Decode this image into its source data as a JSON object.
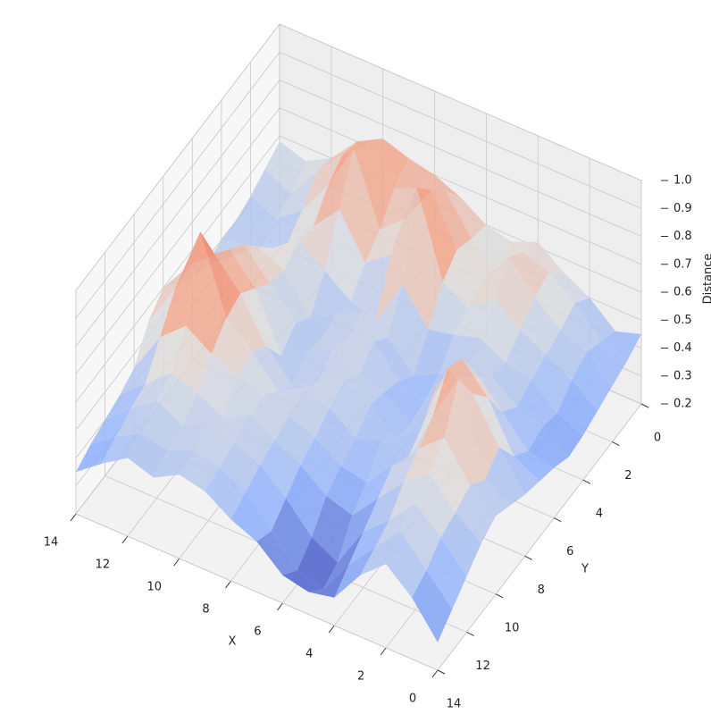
{
  "chart_data": {
    "type": "surface3d",
    "x": [
      0,
      1,
      2,
      3,
      4,
      5,
      6,
      7,
      8,
      9,
      10,
      11,
      12,
      13,
      14
    ],
    "y": [
      0,
      1,
      2,
      3,
      4,
      5,
      6,
      7,
      8,
      9,
      10,
      11,
      12,
      13,
      14
    ],
    "z": [
      [
        0.45,
        0.42,
        0.5,
        0.55,
        0.62,
        0.58,
        0.6,
        0.66,
        0.7,
        0.72,
        0.75,
        0.7,
        0.6,
        0.55,
        0.58
      ],
      [
        0.42,
        0.45,
        0.55,
        0.62,
        0.65,
        0.55,
        0.62,
        0.75,
        0.72,
        0.68,
        0.8,
        0.72,
        0.62,
        0.5,
        0.55
      ],
      [
        0.4,
        0.48,
        0.52,
        0.6,
        0.7,
        0.58,
        0.65,
        0.82,
        0.68,
        0.6,
        0.85,
        0.68,
        0.55,
        0.48,
        0.52
      ],
      [
        0.38,
        0.45,
        0.5,
        0.55,
        0.62,
        0.55,
        0.6,
        0.9,
        0.62,
        0.55,
        0.7,
        0.6,
        0.5,
        0.45,
        0.5
      ],
      [
        0.36,
        0.4,
        0.48,
        0.5,
        0.55,
        0.52,
        0.5,
        0.62,
        0.45,
        0.48,
        0.55,
        0.62,
        0.55,
        0.52,
        0.5
      ],
      [
        0.35,
        0.42,
        0.45,
        0.52,
        0.48,
        0.45,
        0.4,
        0.5,
        0.55,
        0.5,
        0.45,
        0.58,
        0.62,
        0.55,
        0.48
      ],
      [
        0.38,
        0.4,
        0.5,
        0.6,
        0.55,
        0.42,
        0.45,
        0.55,
        0.52,
        0.48,
        0.5,
        0.6,
        0.7,
        0.62,
        0.5
      ],
      [
        0.4,
        0.45,
        0.62,
        0.72,
        0.58,
        0.4,
        0.48,
        0.5,
        0.55,
        0.5,
        0.45,
        0.65,
        0.75,
        0.68,
        0.55
      ],
      [
        0.42,
        0.55,
        0.7,
        0.75,
        0.5,
        0.42,
        0.5,
        0.55,
        0.5,
        0.45,
        0.55,
        0.7,
        0.8,
        0.72,
        0.6
      ],
      [
        0.45,
        0.5,
        0.82,
        0.65,
        0.45,
        0.48,
        0.45,
        0.52,
        0.55,
        0.5,
        0.6,
        0.68,
        0.95,
        0.7,
        0.55
      ],
      [
        0.48,
        0.55,
        0.68,
        0.6,
        0.5,
        0.4,
        0.42,
        0.48,
        0.52,
        0.55,
        0.58,
        0.62,
        0.68,
        0.6,
        0.45
      ],
      [
        0.45,
        0.52,
        0.62,
        0.55,
        0.45,
        0.35,
        0.38,
        0.45,
        0.5,
        0.55,
        0.5,
        0.55,
        0.58,
        0.5,
        0.42
      ],
      [
        0.4,
        0.5,
        0.58,
        0.48,
        0.4,
        0.25,
        0.3,
        0.4,
        0.48,
        0.52,
        0.55,
        0.5,
        0.55,
        0.48,
        0.4
      ],
      [
        0.35,
        0.45,
        0.55,
        0.45,
        0.35,
        0.22,
        0.25,
        0.35,
        0.45,
        0.5,
        0.52,
        0.48,
        0.5,
        0.45,
        0.38
      ],
      [
        0.3,
        0.42,
        0.5,
        0.42,
        0.3,
        0.28,
        0.3,
        0.38,
        0.42,
        0.48,
        0.5,
        0.45,
        0.48,
        0.42,
        0.35
      ]
    ],
    "colormap": "coolwarm",
    "xlabel": "X",
    "ylabel": "Y",
    "zlabel": "Distance",
    "xlim": [
      0,
      14
    ],
    "ylim": [
      0,
      14
    ],
    "zlim": [
      0.2,
      1.0
    ],
    "xticks": [
      0,
      2,
      4,
      6,
      8,
      10,
      12,
      14
    ],
    "yticks": [
      0,
      2,
      4,
      6,
      8,
      10,
      12,
      14
    ],
    "zticks": [
      0.2,
      0.3,
      0.4,
      0.5,
      0.6,
      0.7,
      0.8,
      0.9,
      {
        "value": 1.0,
        "label": "1.0"
      }
    ],
    "grid": true
  }
}
